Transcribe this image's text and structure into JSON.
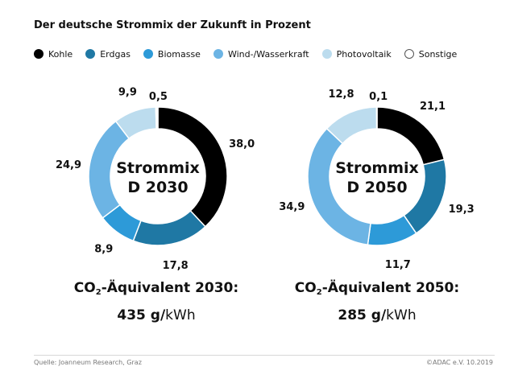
{
  "title": "Der deutsche Strommix der Zukunft in Prozent",
  "legend": [
    {
      "label": "Kohle",
      "color": "#000000"
    },
    {
      "label": "Erdgas",
      "color": "#1f78a4"
    },
    {
      "label": "Biomasse",
      "color": "#2d9ad8"
    },
    {
      "label": "Wind-/Wasserkraft",
      "color": "#6cb4e4"
    },
    {
      "label": "Photovoltaik",
      "color": "#bcdcee"
    },
    {
      "label": "Sonstige",
      "color": "#ffffff"
    }
  ],
  "chart_data": [
    {
      "type": "pie",
      "center_label": [
        "Strommix",
        "D 2030"
      ],
      "categories": [
        "Kohle",
        "Erdgas",
        "Biomasse",
        "Wind-/Wasserkraft",
        "Photovoltaik",
        "Sonstige"
      ],
      "values": [
        38.0,
        17.8,
        8.9,
        24.9,
        9.9,
        0.5
      ],
      "value_labels": [
        "38,0",
        "17,8",
        "8,9",
        "24,9",
        "9,9",
        "0,5"
      ]
    },
    {
      "type": "pie",
      "center_label": [
        "Strommix",
        "D 2050"
      ],
      "categories": [
        "Kohle",
        "Erdgas",
        "Biomasse",
        "Wind-/Wasserkraft",
        "Photovoltaik",
        "Sonstige"
      ],
      "values": [
        21.1,
        19.3,
        11.7,
        34.9,
        12.8,
        0.1
      ],
      "value_labels": [
        "21,1",
        "19,3",
        "11,7",
        "34,9",
        "12,8",
        "0,1"
      ]
    }
  ],
  "co2": [
    {
      "prefix": "CO",
      "sub": "2",
      "text": "-Äquivalent 2030:",
      "value": "435 g/",
      "unit": "kWh"
    },
    {
      "prefix": "CO",
      "sub": "2",
      "text": "-Äquivalent 2050:",
      "value": "285 g/",
      "unit": "kWh"
    }
  ],
  "footer": {
    "source": "Quelle:  Joanneum Research, Graz",
    "copyright": "©ADAC e.V.  10.2019"
  }
}
